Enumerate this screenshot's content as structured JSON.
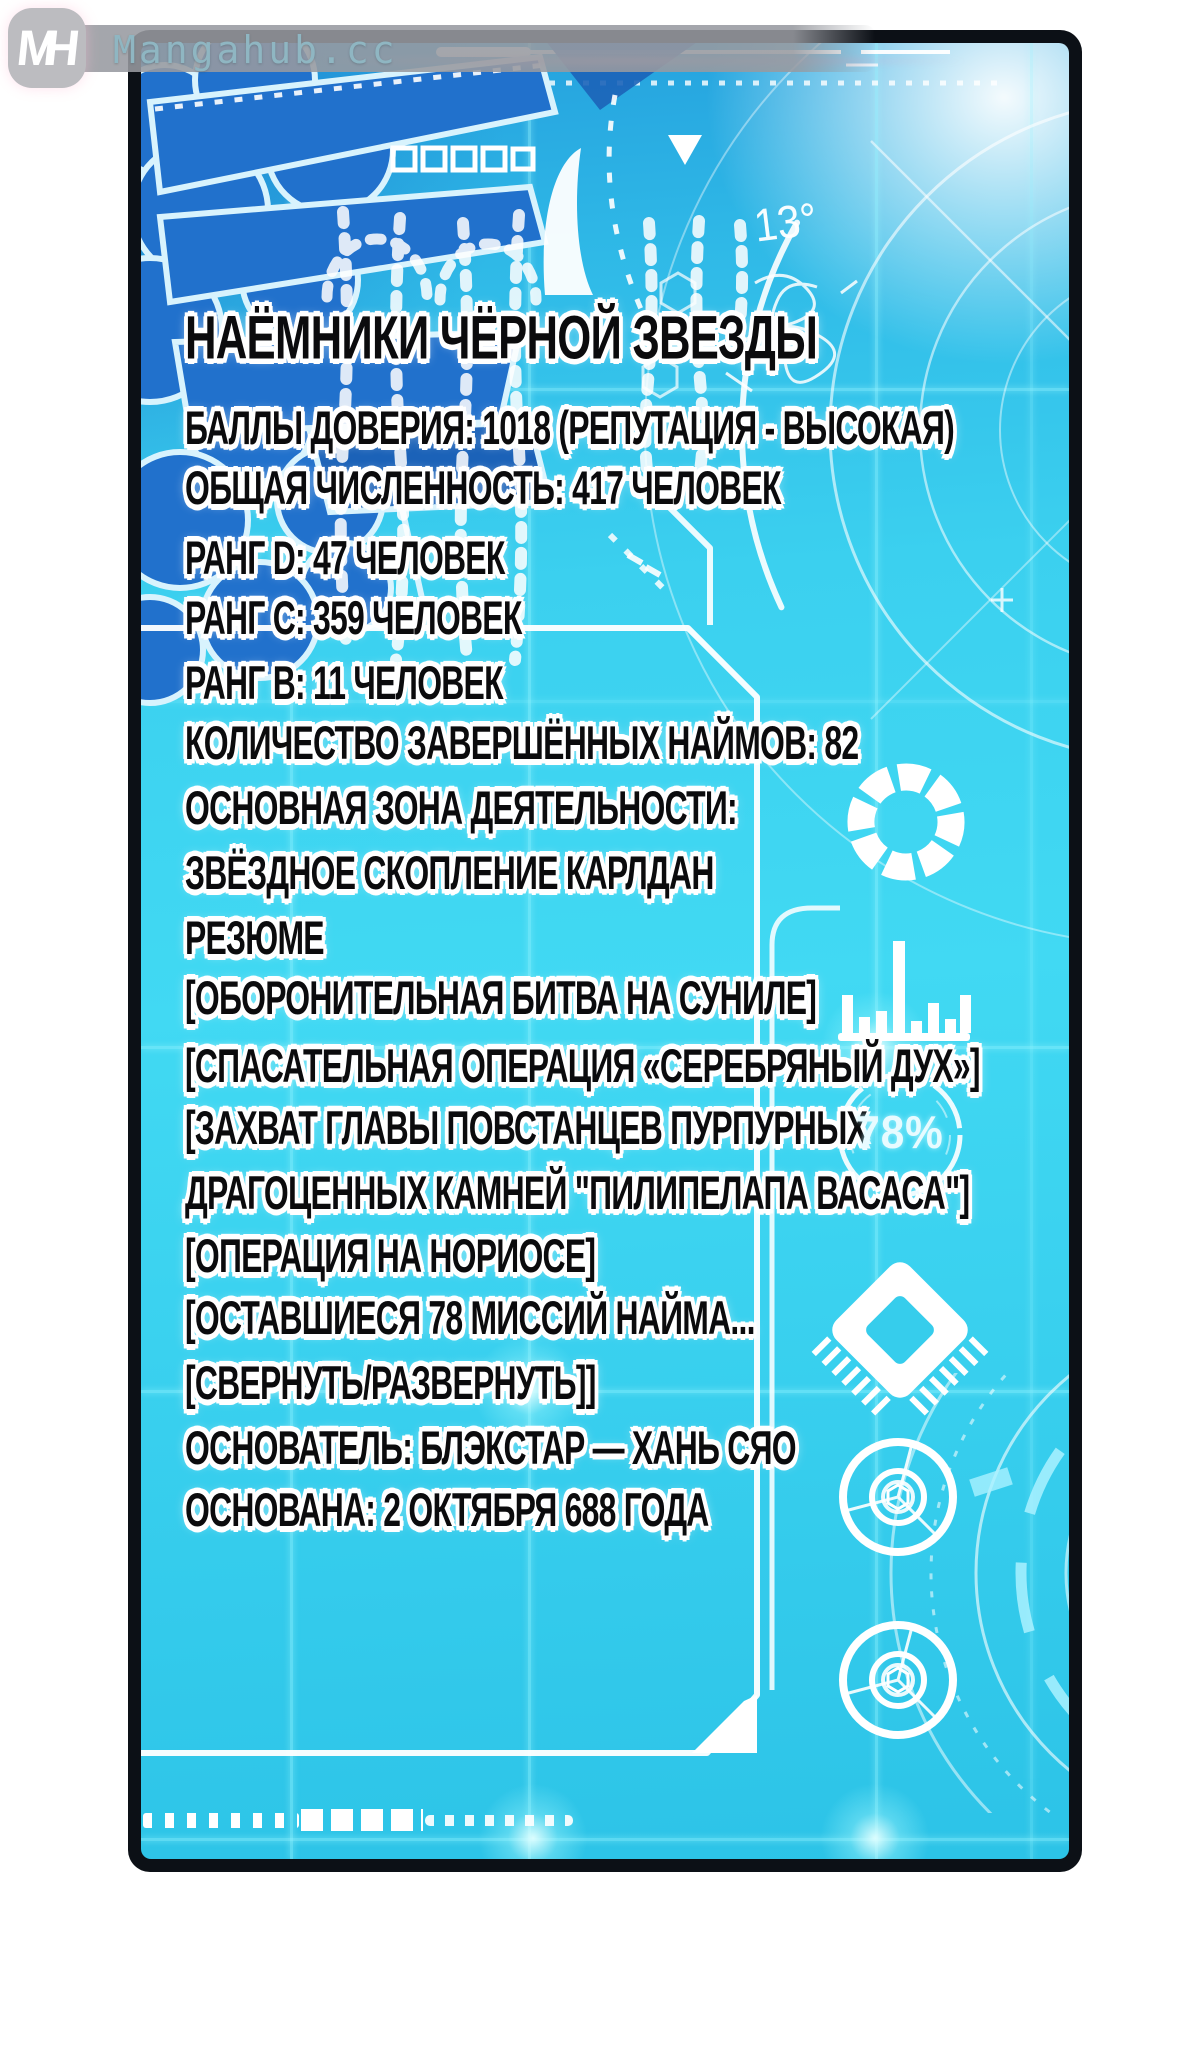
{
  "watermark": {
    "logo_text": "MH",
    "site_name": "Mangahub.cc"
  },
  "status_panel": {
    "title": "НАЁМНИКИ ЧЁРНОЙ ЗВЕЗДЫ",
    "lines": [
      "БАЛЛЫ ДОВЕРИЯ: 1018 (РЕПУТАЦИЯ - ВЫСОКАЯ)",
      "ОБЩАЯ ЧИСЛЕННОСТЬ: 417 ЧЕЛОВЕК",
      "РАНГ D: 47 ЧЕЛОВЕК",
      "РАНГ C: 359 ЧЕЛОВЕК",
      "РАНГ B: 11 ЧЕЛОВЕК",
      "КОЛИЧЕСТВО ЗАВЕРШЁННЫХ НАЙМОВ: 82",
      "ОСНОВНАЯ ЗОНА ДЕЯТЕЛЬНОСТИ:",
      "ЗВЁЗДНОЕ СКОПЛЕНИЕ КАРЛДАН",
      "РЕЗЮМЕ",
      "[ОБОРОНИТЕЛЬНАЯ БИТВА НА СУНИЛЕ]",
      "[СПАСАТЕЛЬНАЯ ОПЕРАЦИЯ «СЕРЕБРЯНЫЙ ДУХ»]",
      "[ЗАХВАТ ГЛАВЫ ПОВСТАНЦЕВ ПУРПУРНЫХ",
      "ДРАГОЦЕННЫХ КАМНЕЙ \"ПИЛИПЕЛАПА ВАСАСА\"]",
      "[ОПЕРАЦИЯ НА НОРИОСЕ]",
      "[ОСТАВШИЕСЯ 78 МИССИЙ НАЙМА...",
      "[СВЕРНУТЬ/РАЗВЕРНУТЬ]]",
      "ОСНОВАТЕЛЬ: БЛЭКСТАР — ХАНЬ СЯО",
      "ОСНОВАНА: 2 ОКТЯБРЯ 688 ГОДА"
    ],
    "hud": {
      "angle_label": "13°",
      "progress_label": "78%"
    }
  },
  "colors": {
    "panel_cyan": "#3bd0ef",
    "deep_azure": "#249fdd",
    "dna_blue": "#2171cc",
    "frame_black": "#0c1016",
    "hud_white": "#ffffff"
  }
}
